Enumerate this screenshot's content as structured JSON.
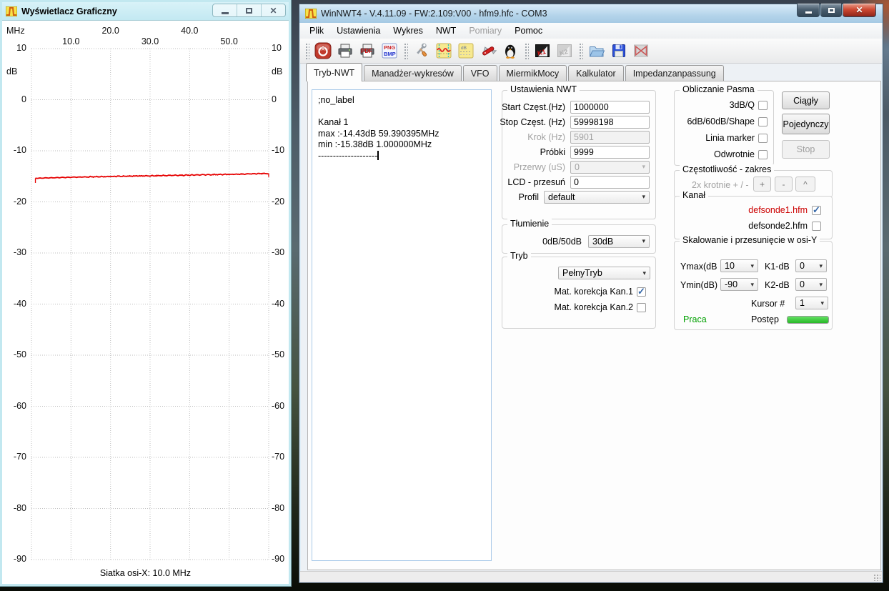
{
  "left_window": {
    "title": "Wyświetlacz Graficzny",
    "footer": "Siatka osi-X: 10.0 MHz"
  },
  "chart_data": {
    "type": "line",
    "title": "",
    "x_unit": "MHz",
    "y_unit": "dB",
    "xlim": [
      0,
      60
    ],
    "ylim": [
      10,
      -90
    ],
    "grid": true,
    "grid_step_x_mhz": 10.0,
    "x_ticks": [
      10,
      20,
      30,
      40,
      50
    ],
    "x_tick_labels": [
      "10.0",
      "20.0",
      "30.0",
      "40.0",
      "50.0"
    ],
    "y_ticks": [
      10,
      0,
      -10,
      -20,
      -30,
      -40,
      -50,
      -60,
      -70,
      -80,
      -90
    ],
    "series": [
      {
        "name": "Kanał 1",
        "color": "#e60000",
        "max_point": {
          "db": -14.43,
          "mhz": 59.390395
        },
        "min_point": {
          "db": -15.38,
          "mhz": 1.0
        },
        "points": [
          [
            1,
            -15.38
          ],
          [
            5,
            -15.3
          ],
          [
            10,
            -15.18
          ],
          [
            15,
            -15.1
          ],
          [
            20,
            -15.02
          ],
          [
            25,
            -14.95
          ],
          [
            30,
            -14.9
          ],
          [
            35,
            -14.82
          ],
          [
            40,
            -14.76
          ],
          [
            45,
            -14.68
          ],
          [
            50,
            -14.6
          ],
          [
            55,
            -14.52
          ],
          [
            59.99,
            -14.43
          ]
        ]
      }
    ]
  },
  "right_window": {
    "title": "WinNWT4 - V.4.11.09 - FW:2.109:V00 - hfm9.hfc - COM3",
    "menu": [
      {
        "label": "Plik",
        "enabled": true
      },
      {
        "label": "Ustawienia",
        "enabled": true
      },
      {
        "label": "Wykres",
        "enabled": true
      },
      {
        "label": "NWT",
        "enabled": true
      },
      {
        "label": "Pomiary",
        "enabled": false
      },
      {
        "label": "Pomoc",
        "enabled": true
      }
    ],
    "toolbar_icons": [
      "power",
      "print",
      "print-pdf",
      "export-png-bmp",
      "tools",
      "sweep-profile",
      "db-settings",
      "swiss-knife",
      "linux-tux",
      "k1-correction",
      "k2-correction",
      "open-file",
      "save-file",
      "disconnect"
    ],
    "tabs": [
      {
        "label": "Tryb-NWT",
        "active": true
      },
      {
        "label": "Manadżer-wykresów",
        "active": false
      },
      {
        "label": "VFO",
        "active": false
      },
      {
        "label": "MiermikMocy",
        "active": false
      },
      {
        "label": "Kalkulator",
        "active": false
      },
      {
        "label": "Impedanzanpassung",
        "active": false
      }
    ],
    "console_lines": [
      ";no_label",
      "",
      "Kanał 1",
      "max :-14.43dB 59.390395MHz",
      "min :-15.38dB 1.000000MHz",
      "--------------------"
    ],
    "nwt_settings": {
      "legend": "Ustawienia NWT",
      "rows": [
        {
          "label": "Start Częst.(Hz)",
          "value": "1000000",
          "type": "input",
          "disabled": false
        },
        {
          "label": "Stop Częst. (Hz)",
          "value": "59998198",
          "type": "input",
          "disabled": false
        },
        {
          "label": "Krok (Hz)",
          "value": "5901",
          "type": "input",
          "disabled": true
        },
        {
          "label": "Próbki",
          "value": "9999",
          "type": "input",
          "disabled": false
        },
        {
          "label": "Przerwy (uS)",
          "value": "0",
          "type": "combo",
          "disabled": true
        },
        {
          "label": "LCD - przesuń",
          "value": "0",
          "type": "input",
          "disabled": false
        },
        {
          "label": "Profil",
          "value": "default",
          "type": "combo",
          "disabled": false
        }
      ]
    },
    "attenuation": {
      "legend": "Tłumienie",
      "label": "0dB/50dB",
      "value": "30dB"
    },
    "mode": {
      "legend": "Tryb",
      "combo_value": "PełnyTryb",
      "checks": [
        {
          "label": "Mat. korekcja Kan.1",
          "checked": true
        },
        {
          "label": "Mat. korekcja Kan.2",
          "checked": false
        }
      ]
    },
    "band_calc": {
      "legend": "Obliczanie Pasma",
      "checks": [
        {
          "label": "3dB/Q",
          "checked": false
        },
        {
          "label": "6dB/60dB/Shape",
          "checked": false
        },
        {
          "label": "Linia marker",
          "checked": false
        },
        {
          "label": "Odwrotnie",
          "checked": false
        }
      ]
    },
    "run_buttons": [
      {
        "label": "Ciągły",
        "disabled": false
      },
      {
        "label": "Pojedynczy",
        "disabled": false
      },
      {
        "label": "Stop",
        "disabled": true
      }
    ],
    "freq_range": {
      "legend": "Częstotliwość - zakres",
      "label": "2x krotnie + / -",
      "buttons": [
        "+",
        "-",
        "^"
      ]
    },
    "channel": {
      "legend": "Kanał",
      "items": [
        {
          "label": "defsonde1.hfm",
          "checked": true,
          "color": "#cc0000"
        },
        {
          "label": "defsonde2.hfm",
          "checked": false,
          "color": "#000000"
        }
      ]
    },
    "scaling": {
      "legend": "Skalowanie i przesunięcie w osi-Y",
      "ymax_label": "Ymax(dB",
      "ymax_value": "10",
      "k1_label": "K1-dB",
      "k1_value": "0",
      "ymin_label": "Ymin(dB)",
      "ymin_value": "-90",
      "k2_label": "K2-dB",
      "k2_value": "0",
      "cursor_label": "Kursor #",
      "cursor_value": "1",
      "status_text": "Praca",
      "progress_label": "Postęp",
      "progress_percent": 100,
      "progress_color": "#2db827",
      "status_color": "#00a000"
    }
  }
}
